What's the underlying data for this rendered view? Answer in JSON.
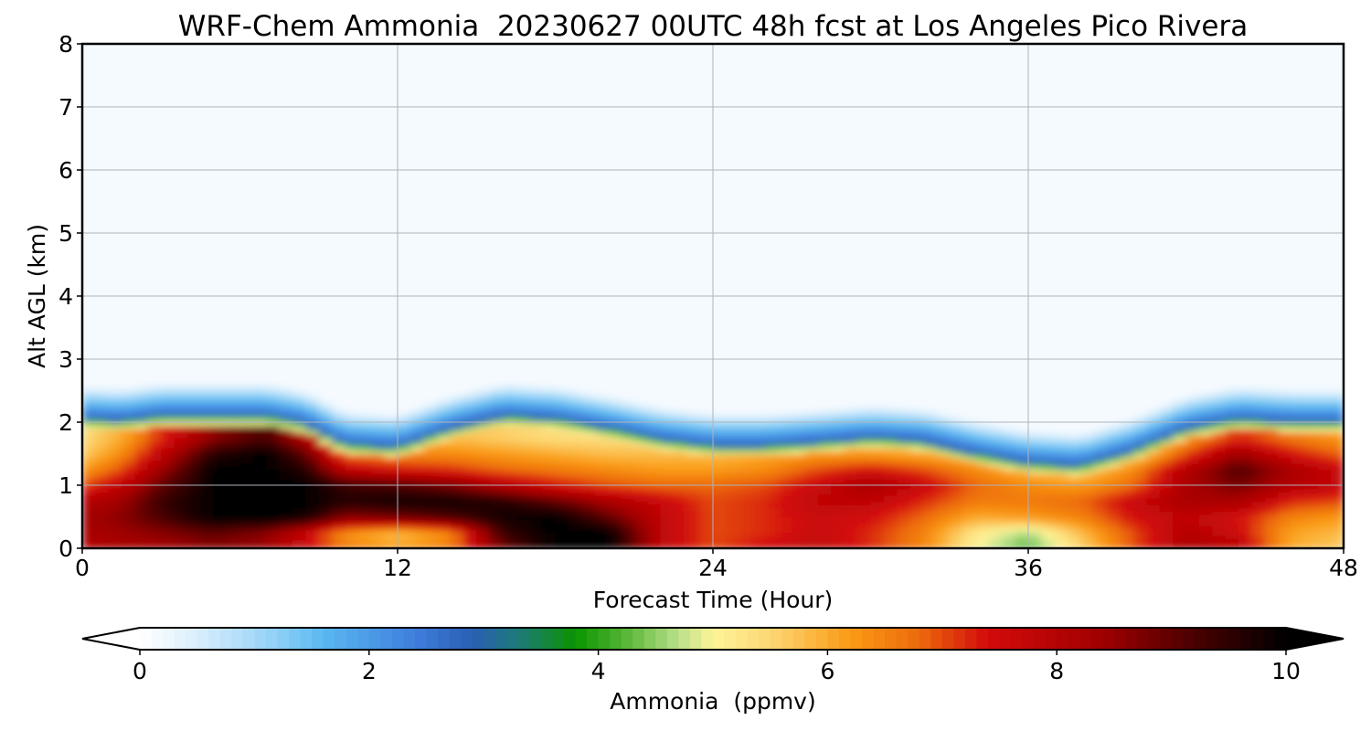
{
  "chart_data": {
    "type": "heatmap",
    "title": "WRF-Chem Ammonia  20230627 00UTC 48h fcst at Los Angeles Pico Rivera",
    "xlabel": "Forecast Time (Hour)",
    "ylabel": "Alt AGL (km)",
    "xlim": [
      0,
      48
    ],
    "ylim": [
      0,
      8
    ],
    "xticks": [
      "0",
      "12",
      "24",
      "36",
      "48"
    ],
    "yticks": [
      "0",
      "1",
      "2",
      "3",
      "4",
      "5",
      "6",
      "7",
      "8"
    ],
    "grid": true,
    "colorbar": {
      "label": "Ammonia  (ppmv)",
      "range": [
        0,
        10
      ],
      "ticks": [
        "0",
        "2",
        "4",
        "6",
        "8",
        "10"
      ],
      "extend": "both",
      "color_stops": [
        {
          "v": 0.0,
          "c": "#ffffff"
        },
        {
          "v": 0.5,
          "c": "#daeefc"
        },
        {
          "v": 1.2,
          "c": "#8fd0f7"
        },
        {
          "v": 1.6,
          "c": "#5ab8f0"
        },
        {
          "v": 2.4,
          "c": "#3e7edd"
        },
        {
          "v": 2.9,
          "c": "#2a5fb4"
        },
        {
          "v": 3.3,
          "c": "#1e7a7a"
        },
        {
          "v": 3.8,
          "c": "#0b9400"
        },
        {
          "v": 4.2,
          "c": "#4fb330"
        },
        {
          "v": 4.7,
          "c": "#b9e08a"
        },
        {
          "v": 5.0,
          "c": "#fdf498"
        },
        {
          "v": 5.5,
          "c": "#fcd774"
        },
        {
          "v": 6.2,
          "c": "#fa9a14"
        },
        {
          "v": 6.8,
          "c": "#ec6a0c"
        },
        {
          "v": 7.4,
          "c": "#d20a0a"
        },
        {
          "v": 8.4,
          "c": "#a00000"
        },
        {
          "v": 9.2,
          "c": "#4a0000"
        },
        {
          "v": 10.0,
          "c": "#000000"
        }
      ]
    },
    "field": {
      "x_hours": [
        0,
        1.5,
        3,
        5,
        7,
        8.5,
        10,
        12,
        14,
        16,
        18,
        20,
        22,
        24,
        26,
        28,
        30,
        32,
        34,
        36,
        38,
        40,
        42,
        44,
        46,
        48
      ],
      "pbl_top_km": [
        2.05,
        2.02,
        2.1,
        2.1,
        2.1,
        1.98,
        1.65,
        1.6,
        1.9,
        2.1,
        2.05,
        1.9,
        1.72,
        1.62,
        1.62,
        1.68,
        1.75,
        1.7,
        1.5,
        1.35,
        1.3,
        1.55,
        1.9,
        2.05,
        2.0,
        2.0
      ],
      "z_km": [
        0.0,
        0.25,
        0.5,
        0.75,
        1.0,
        1.25,
        1.5,
        1.75
      ],
      "ppmv_by_level": [
        [
          8.0,
          8.2,
          8.3,
          8.6,
          8.4,
          7.6,
          6.6,
          6.1,
          6.6,
          8.8,
          10.0,
          10.0,
          7.8,
          7.0,
          7.5,
          7.8,
          7.2,
          6.5,
          5.0,
          4.2,
          5.5,
          7.0,
          8.2,
          8.0,
          6.0,
          5.6
        ],
        [
          8.2,
          8.4,
          8.6,
          9.0,
          8.6,
          7.6,
          6.3,
          5.8,
          6.4,
          9.4,
          10.0,
          10.0,
          7.8,
          7.0,
          7.2,
          7.6,
          7.2,
          6.5,
          5.2,
          4.6,
          5.8,
          7.0,
          8.0,
          7.5,
          6.1,
          5.8
        ],
        [
          8.3,
          8.6,
          9.2,
          10.0,
          10.0,
          9.8,
          8.6,
          8.8,
          9.2,
          9.8,
          10.0,
          9.0,
          7.8,
          7.0,
          7.2,
          7.6,
          7.4,
          6.8,
          6.0,
          6.2,
          6.5,
          7.4,
          7.8,
          7.4,
          6.5,
          6.2
        ],
        [
          8.0,
          8.4,
          9.4,
          10.0,
          10.0,
          10.0,
          9.6,
          9.8,
          9.8,
          9.6,
          9.0,
          8.2,
          7.6,
          7.0,
          7.2,
          7.8,
          7.8,
          7.2,
          6.6,
          6.6,
          6.8,
          7.6,
          8.2,
          8.2,
          7.2,
          7.0
        ],
        [
          7.0,
          7.8,
          9.0,
          10.0,
          10.0,
          10.0,
          9.4,
          9.2,
          8.8,
          8.0,
          7.4,
          7.0,
          6.8,
          6.8,
          7.0,
          7.6,
          8.2,
          7.6,
          6.8,
          6.4,
          6.2,
          6.8,
          8.2,
          8.8,
          8.0,
          7.6
        ],
        [
          6.2,
          7.0,
          8.4,
          10.0,
          10.0,
          9.6,
          7.8,
          7.4,
          7.2,
          6.8,
          6.6,
          6.4,
          6.2,
          6.2,
          6.4,
          7.0,
          7.4,
          7.0,
          6.4,
          5.8,
          5.6,
          6.4,
          8.0,
          9.2,
          8.2,
          7.6
        ],
        [
          5.6,
          6.4,
          7.8,
          9.6,
          10.0,
          9.0,
          6.6,
          6.4,
          6.4,
          6.2,
          6.0,
          5.8,
          5.8,
          5.8,
          6.0,
          6.2,
          6.2,
          6.0,
          5.6,
          5.0,
          4.8,
          5.4,
          7.0,
          8.4,
          7.4,
          6.8
        ],
        [
          5.4,
          6.0,
          7.2,
          8.6,
          9.2,
          8.0,
          6.0,
          5.8,
          5.8,
          5.6,
          5.4,
          5.4,
          5.4,
          5.5,
          5.6,
          5.6,
          5.6,
          5.4,
          5.2,
          4.8,
          4.6,
          5.0,
          6.2,
          7.2,
          6.6,
          6.2
        ]
      ]
    }
  }
}
